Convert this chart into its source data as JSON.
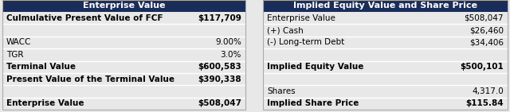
{
  "left_header": "Enterprise Value",
  "left_rows": [
    {
      "label": "Culmulative Present Value of FCF",
      "value": "$117,709",
      "bold": true
    },
    {
      "label": "",
      "value": "",
      "bold": false
    },
    {
      "label": "WACC",
      "value": "9.00%",
      "bold": false
    },
    {
      "label": "TGR",
      "value": "3.0%",
      "bold": false
    },
    {
      "label": "Terminal Value",
      "value": "$600,583",
      "bold": true
    },
    {
      "label": "Present Value of the Terminal Value",
      "value": "$390,338",
      "bold": true
    },
    {
      "label": "",
      "value": "",
      "bold": false
    },
    {
      "label": "Enterprise Value",
      "value": "$508,047",
      "bold": true
    }
  ],
  "right_header": "Implied Equity Value and Share Price",
  "right_rows": [
    {
      "label": "Enterprise Value",
      "value": "$508,047",
      "bold": false
    },
    {
      "label": "(+) Cash",
      "value": "$26,460",
      "bold": false
    },
    {
      "label": "(-) Long-term Debt",
      "value": "$34,406",
      "bold": false
    },
    {
      "label": "",
      "value": "",
      "bold": false
    },
    {
      "label": "Implied Equity Value",
      "value": "$500,101",
      "bold": true
    },
    {
      "label": "",
      "value": "",
      "bold": false
    },
    {
      "label": "Shares",
      "value": "4,317.0",
      "bold": false
    },
    {
      "label": "Implied Share Price",
      "value": "$115.84",
      "bold": true
    }
  ],
  "header_bg": "#1a2d5a",
  "header_fg": "#ffffff",
  "row_bg": "#e8e8e8",
  "font_size": 7.5,
  "header_font_size": 8.0
}
